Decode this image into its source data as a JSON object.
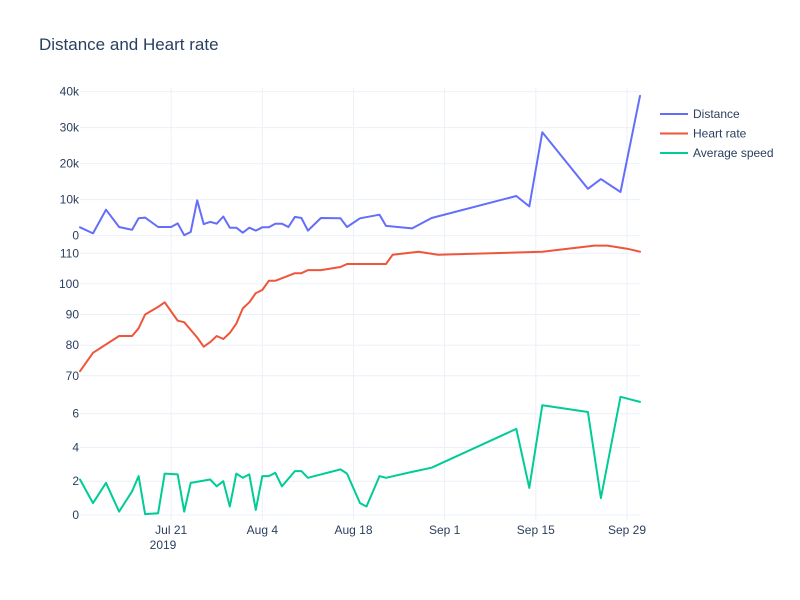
{
  "chart_data": {
    "type": "line",
    "title": "Distance and Heart rate",
    "x_axis": {
      "tick_labels": [
        "Jul 21",
        "Aug 4",
        "Aug 18",
        "Sep 1",
        "Sep 15",
        "Sep 29"
      ],
      "sub_label": "2019",
      "tick_dates": [
        "2019-07-21",
        "2019-08-04",
        "2019-08-18",
        "2019-09-01",
        "2019-09-15",
        "2019-09-29"
      ],
      "range": [
        "2019-07-07",
        "2019-10-01"
      ]
    },
    "panels": [
      {
        "name": "distance-panel",
        "ylim": [
          -1500,
          41000
        ],
        "ticks": [
          0,
          10000,
          20000,
          30000,
          40000
        ],
        "tick_labels": [
          "0",
          "10k",
          "20k",
          "30k",
          "40k"
        ]
      },
      {
        "name": "heart-rate-panel",
        "ylim": [
          67,
          114
        ],
        "ticks": [
          70,
          80,
          90,
          100,
          110
        ],
        "tick_labels": [
          "70",
          "80",
          "90",
          "100",
          "110"
        ]
      },
      {
        "name": "speed-panel",
        "ylim": [
          -0.3,
          7.7
        ],
        "ticks": [
          0,
          2,
          4,
          6
        ],
        "tick_labels": [
          "0",
          "2",
          "4",
          "6"
        ]
      }
    ],
    "series": [
      {
        "name": "Distance",
        "color": "#636efa",
        "panel": 0,
        "points": [
          [
            "2019-07-07",
            2300
          ],
          [
            "2019-07-09",
            600
          ],
          [
            "2019-07-11",
            7200
          ],
          [
            "2019-07-13",
            2400
          ],
          [
            "2019-07-15",
            1600
          ],
          [
            "2019-07-16",
            4800
          ],
          [
            "2019-07-17",
            5000
          ],
          [
            "2019-07-19",
            2400
          ],
          [
            "2019-07-21",
            2400
          ],
          [
            "2019-07-22",
            3400
          ],
          [
            "2019-07-23",
            100
          ],
          [
            "2019-07-24",
            1000
          ],
          [
            "2019-07-25",
            9800
          ],
          [
            "2019-07-26",
            3200
          ],
          [
            "2019-07-27",
            3800
          ],
          [
            "2019-07-28",
            3300
          ],
          [
            "2019-07-29",
            5300
          ],
          [
            "2019-07-30",
            2200
          ],
          [
            "2019-07-31",
            2200
          ],
          [
            "2019-08-01",
            800
          ],
          [
            "2019-08-02",
            2200
          ],
          [
            "2019-08-03",
            1400
          ],
          [
            "2019-08-04",
            2300
          ],
          [
            "2019-08-05",
            2300
          ],
          [
            "2019-08-06",
            3300
          ],
          [
            "2019-08-07",
            3300
          ],
          [
            "2019-08-08",
            2400
          ],
          [
            "2019-08-09",
            5200
          ],
          [
            "2019-08-10",
            4900
          ],
          [
            "2019-08-11",
            1400
          ],
          [
            "2019-08-13",
            4900
          ],
          [
            "2019-08-16",
            4800
          ],
          [
            "2019-08-17",
            2400
          ],
          [
            "2019-08-19",
            4800
          ],
          [
            "2019-08-22",
            5800
          ],
          [
            "2019-08-23",
            2700
          ],
          [
            "2019-08-27",
            2000
          ],
          [
            "2019-08-30",
            4900
          ],
          [
            "2019-09-12",
            11000
          ],
          [
            "2019-09-14",
            8100
          ],
          [
            "2019-09-16",
            28700
          ],
          [
            "2019-09-23",
            13000
          ],
          [
            "2019-09-25",
            15700
          ],
          [
            "2019-09-28",
            12100
          ],
          [
            "2019-10-01",
            38800
          ]
        ]
      },
      {
        "name": "Heart rate",
        "color": "#ef553b",
        "panel": 1,
        "points": [
          [
            "2019-07-07",
            71.5
          ],
          [
            "2019-07-09",
            77.5
          ],
          [
            "2019-07-13",
            83
          ],
          [
            "2019-07-15",
            83
          ],
          [
            "2019-07-16",
            85.5
          ],
          [
            "2019-07-17",
            90
          ],
          [
            "2019-07-19",
            92.5
          ],
          [
            "2019-07-20",
            94
          ],
          [
            "2019-07-21",
            91
          ],
          [
            "2019-07-22",
            88
          ],
          [
            "2019-07-23",
            87.5
          ],
          [
            "2019-07-24",
            85
          ],
          [
            "2019-07-25",
            82.5
          ],
          [
            "2019-07-26",
            79.5
          ],
          [
            "2019-07-27",
            81
          ],
          [
            "2019-07-28",
            83
          ],
          [
            "2019-07-29",
            82
          ],
          [
            "2019-07-30",
            84
          ],
          [
            "2019-07-31",
            87
          ],
          [
            "2019-08-01",
            92
          ],
          [
            "2019-08-02",
            94
          ],
          [
            "2019-08-03",
            97
          ],
          [
            "2019-08-04",
            98
          ],
          [
            "2019-08-05",
            101
          ],
          [
            "2019-08-06",
            101
          ],
          [
            "2019-08-09",
            103.5
          ],
          [
            "2019-08-10",
            103.5
          ],
          [
            "2019-08-11",
            104.5
          ],
          [
            "2019-08-13",
            104.5
          ],
          [
            "2019-08-16",
            105.5
          ],
          [
            "2019-08-17",
            106.5
          ],
          [
            "2019-08-23",
            106.5
          ],
          [
            "2019-08-24",
            109.5
          ],
          [
            "2019-08-28",
            110.5
          ],
          [
            "2019-08-31",
            109.5
          ],
          [
            "2019-09-16",
            110.5
          ],
          [
            "2019-09-24",
            112.5
          ],
          [
            "2019-09-26",
            112.5
          ],
          [
            "2019-09-29",
            111.5
          ],
          [
            "2019-10-01",
            110.5
          ]
        ]
      },
      {
        "name": "Average speed",
        "color": "#00cc96",
        "panel": 2,
        "points": [
          [
            "2019-07-07",
            2.1
          ],
          [
            "2019-07-09",
            0.7
          ],
          [
            "2019-07-11",
            1.9
          ],
          [
            "2019-07-13",
            0.2
          ],
          [
            "2019-07-15",
            1.4
          ],
          [
            "2019-07-16",
            2.3
          ],
          [
            "2019-07-17",
            0.05
          ],
          [
            "2019-07-19",
            0.1
          ],
          [
            "2019-07-20",
            2.45
          ],
          [
            "2019-07-22",
            2.4
          ],
          [
            "2019-07-23",
            0.2
          ],
          [
            "2019-07-24",
            1.9
          ],
          [
            "2019-07-27",
            2.1
          ],
          [
            "2019-07-28",
            1.7
          ],
          [
            "2019-07-29",
            2.0
          ],
          [
            "2019-07-30",
            0.5
          ],
          [
            "2019-07-31",
            2.45
          ],
          [
            "2019-08-01",
            2.2
          ],
          [
            "2019-08-02",
            2.4
          ],
          [
            "2019-08-03",
            0.3
          ],
          [
            "2019-08-04",
            2.3
          ],
          [
            "2019-08-05",
            2.3
          ],
          [
            "2019-08-06",
            2.5
          ],
          [
            "2019-08-07",
            1.7
          ],
          [
            "2019-08-09",
            2.6
          ],
          [
            "2019-08-10",
            2.6
          ],
          [
            "2019-08-11",
            2.2
          ],
          [
            "2019-08-16",
            2.7
          ],
          [
            "2019-08-17",
            2.45
          ],
          [
            "2019-08-19",
            0.7
          ],
          [
            "2019-08-20",
            0.5
          ],
          [
            "2019-08-22",
            2.3
          ],
          [
            "2019-08-23",
            2.2
          ],
          [
            "2019-08-27",
            2.55
          ],
          [
            "2019-08-30",
            2.8
          ],
          [
            "2019-09-12",
            5.1
          ],
          [
            "2019-09-14",
            1.6
          ],
          [
            "2019-09-16",
            6.5
          ],
          [
            "2019-09-23",
            6.1
          ],
          [
            "2019-09-25",
            1.0
          ],
          [
            "2019-09-28",
            7.0
          ],
          [
            "2019-10-01",
            6.7
          ]
        ]
      }
    ],
    "legend_position": "top-right",
    "grid": true
  }
}
